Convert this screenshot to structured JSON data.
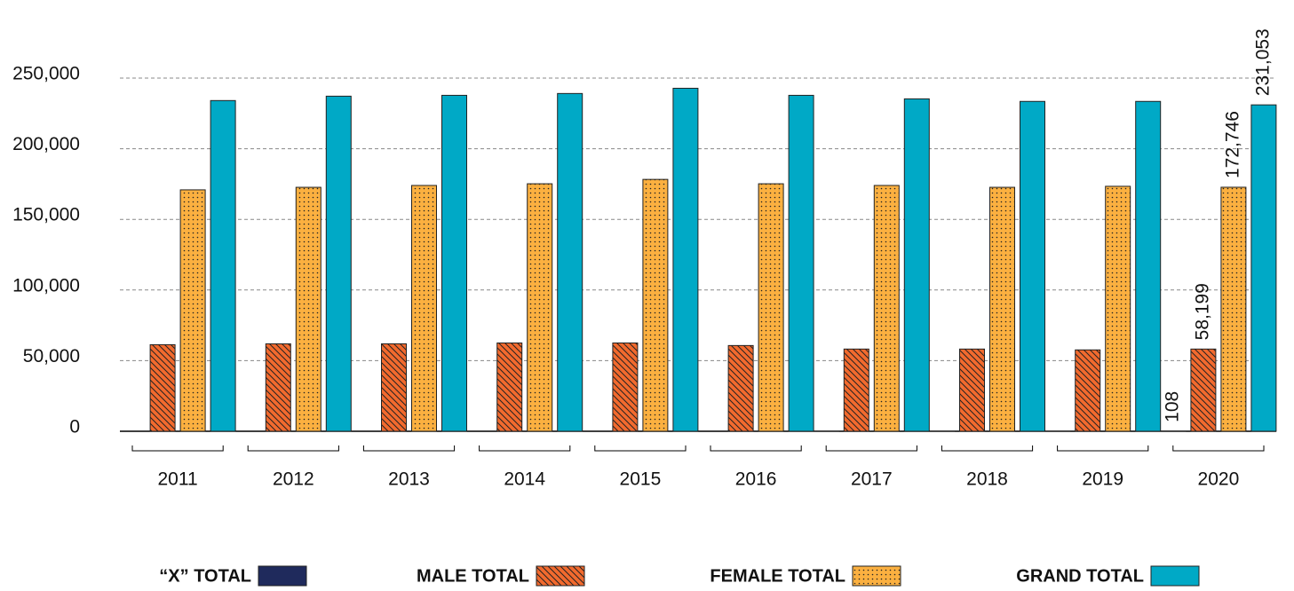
{
  "chart_data": {
    "type": "bar",
    "categories": [
      "2011",
      "2012",
      "2013",
      "2014",
      "2015",
      "2016",
      "2017",
      "2018",
      "2019",
      "2020"
    ],
    "series": [
      {
        "name": "“X” TOTAL",
        "color": "#1f2a5c",
        "pattern": "solid",
        "values": [
          null,
          null,
          null,
          null,
          null,
          null,
          100,
          100,
          100,
          108
        ],
        "value_labels": [
          null,
          null,
          null,
          null,
          null,
          null,
          null,
          null,
          null,
          "108"
        ]
      },
      {
        "name": "MALE TOTAL",
        "color": "#f26a2e",
        "pattern": "hatch",
        "values": [
          61300,
          61900,
          61900,
          62500,
          62500,
          60700,
          58200,
          58200,
          57600,
          58199
        ],
        "value_labels": [
          null,
          null,
          null,
          null,
          null,
          null,
          null,
          null,
          null,
          "58,199"
        ]
      },
      {
        "name": "FEMALE TOTAL",
        "color": "#fbb040",
        "pattern": "dots",
        "values": [
          170900,
          172700,
          174000,
          175200,
          178300,
          175200,
          174000,
          172700,
          173400,
          172746
        ],
        "value_labels": [
          null,
          null,
          null,
          null,
          null,
          null,
          null,
          null,
          null,
          "172,746"
        ]
      },
      {
        "name": "GRAND TOTAL",
        "color": "#00a9c6",
        "pattern": "solid",
        "values": [
          234100,
          237200,
          237800,
          239100,
          242800,
          237800,
          235300,
          233500,
          233500,
          231053
        ],
        "value_labels": [
          null,
          null,
          null,
          null,
          null,
          null,
          null,
          null,
          null,
          "231,053"
        ]
      }
    ],
    "ylim": [
      0,
      250000
    ],
    "yticks": [
      0,
      {
        "value": 50000,
        "label": "50,000"
      },
      {
        "value": 100000,
        "label": "100,000"
      },
      {
        "value": 150000,
        "label": "150,000"
      },
      {
        "value": 200000,
        "label": "200,000"
      },
      {
        "value": 250000,
        "label": "250,000"
      }
    ],
    "grid": true
  }
}
